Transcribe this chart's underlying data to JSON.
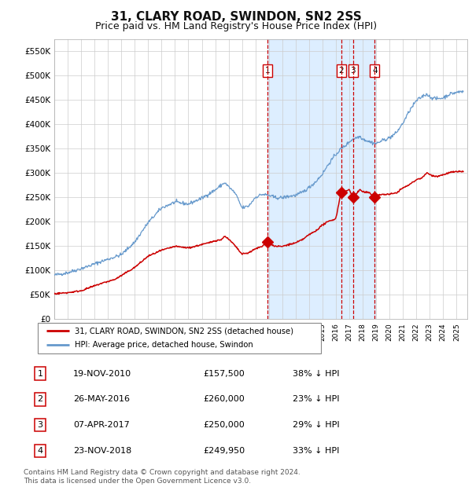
{
  "title": "31, CLARY ROAD, SWINDON, SN2 2SS",
  "subtitle": "Price paid vs. HM Land Registry's House Price Index (HPI)",
  "title_fontsize": 11,
  "subtitle_fontsize": 9,
  "background_color": "#ffffff",
  "plot_bg_color": "#ffffff",
  "grid_color": "#cccccc",
  "ylim": [
    0,
    575000
  ],
  "yticks": [
    0,
    50000,
    100000,
    150000,
    200000,
    250000,
    300000,
    350000,
    400000,
    450000,
    500000,
    550000
  ],
  "ytick_labels": [
    "£0",
    "£50K",
    "£100K",
    "£150K",
    "£200K",
    "£250K",
    "£300K",
    "£350K",
    "£400K",
    "£450K",
    "£500K",
    "£550K"
  ],
  "xlim_start": 1995.0,
  "xlim_end": 2025.8,
  "shade_start": 2010.88,
  "shade_end": 2018.92,
  "shade_color": "#ddeeff",
  "vline_color": "#cc0000",
  "sale_dates_num": [
    2010.88,
    2016.4,
    2017.27,
    2018.9
  ],
  "sale_prices": [
    157500,
    260000,
    250000,
    249950
  ],
  "sale_labels": [
    "1",
    "2",
    "3",
    "4"
  ],
  "sale_marker_color": "#cc0000",
  "hpi_line_color": "#6699cc",
  "price_line_color": "#cc0000",
  "legend_label_price": "31, CLARY ROAD, SWINDON, SN2 2SS (detached house)",
  "legend_label_hpi": "HPI: Average price, detached house, Swindon",
  "table_entries": [
    {
      "num": "1",
      "date": "19-NOV-2010",
      "price": "£157,500",
      "pct": "38% ↓ HPI"
    },
    {
      "num": "2",
      "date": "26-MAY-2016",
      "price": "£260,000",
      "pct": "23% ↓ HPI"
    },
    {
      "num": "3",
      "date": "07-APR-2017",
      "price": "£250,000",
      "pct": "29% ↓ HPI"
    },
    {
      "num": "4",
      "date": "23-NOV-2018",
      "price": "£249,950",
      "pct": "33% ↓ HPI"
    }
  ],
  "footnote": "Contains HM Land Registry data © Crown copyright and database right 2024.\nThis data is licensed under the Open Government Licence v3.0.",
  "footnote_fontsize": 6.5
}
